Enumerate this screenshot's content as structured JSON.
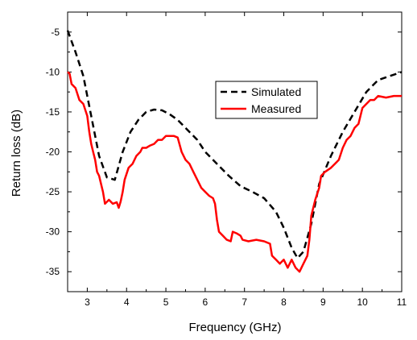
{
  "chart_data": {
    "type": "line",
    "xlabel": "Frequency (GHz)",
    "ylabel": "Return loss (dB)",
    "xlim": [
      2.5,
      11
    ],
    "ylim": [
      -37.5,
      -2.5
    ],
    "xticks": [
      3,
      4,
      5,
      6,
      7,
      8,
      9,
      10,
      11
    ],
    "yticks": [
      -35,
      -30,
      -25,
      -20,
      -15,
      -10,
      -5
    ],
    "legend_position": "upper-middle-right",
    "grid": false,
    "series": [
      {
        "name": "Simulated",
        "color": "#000000",
        "style": "dashed",
        "points": [
          [
            2.5,
            -4.8
          ],
          [
            2.7,
            -7.5
          ],
          [
            2.9,
            -10.5
          ],
          [
            3.1,
            -15.5
          ],
          [
            3.3,
            -20.5
          ],
          [
            3.5,
            -23.2
          ],
          [
            3.7,
            -23.5
          ],
          [
            3.9,
            -20.0
          ],
          [
            4.1,
            -17.5
          ],
          [
            4.3,
            -16.0
          ],
          [
            4.5,
            -15.0
          ],
          [
            4.7,
            -14.7
          ],
          [
            4.9,
            -14.8
          ],
          [
            5.1,
            -15.3
          ],
          [
            5.3,
            -16.0
          ],
          [
            5.5,
            -17.0
          ],
          [
            5.8,
            -18.5
          ],
          [
            6.0,
            -20.0
          ],
          [
            6.3,
            -21.5
          ],
          [
            6.6,
            -23.0
          ],
          [
            6.9,
            -24.3
          ],
          [
            7.2,
            -25.0
          ],
          [
            7.5,
            -25.8
          ],
          [
            7.8,
            -27.5
          ],
          [
            8.0,
            -29.5
          ],
          [
            8.2,
            -32.0
          ],
          [
            8.35,
            -33.3
          ],
          [
            8.5,
            -32.5
          ],
          [
            8.7,
            -29.0
          ],
          [
            8.9,
            -24.0
          ],
          [
            9.2,
            -20.5
          ],
          [
            9.5,
            -17.5
          ],
          [
            9.8,
            -15.0
          ],
          [
            10.1,
            -12.5
          ],
          [
            10.4,
            -11.0
          ],
          [
            10.7,
            -10.5
          ],
          [
            11.0,
            -10.0
          ]
        ]
      },
      {
        "name": "Measured",
        "color": "#ff0000",
        "style": "solid",
        "points": [
          [
            2.5,
            -10.0
          ],
          [
            2.55,
            -10.2
          ],
          [
            2.6,
            -11.5
          ],
          [
            2.7,
            -12.0
          ],
          [
            2.8,
            -13.5
          ],
          [
            2.9,
            -14.0
          ],
          [
            3.0,
            -15.5
          ],
          [
            3.05,
            -17.5
          ],
          [
            3.1,
            -19.0
          ],
          [
            3.15,
            -20.0
          ],
          [
            3.2,
            -21.0
          ],
          [
            3.25,
            -22.5
          ],
          [
            3.3,
            -23.0
          ],
          [
            3.35,
            -24.0
          ],
          [
            3.4,
            -25.0
          ],
          [
            3.45,
            -26.5
          ],
          [
            3.55,
            -26.0
          ],
          [
            3.65,
            -26.5
          ],
          [
            3.75,
            -26.3
          ],
          [
            3.8,
            -27.0
          ],
          [
            3.85,
            -26.2
          ],
          [
            3.9,
            -25.0
          ],
          [
            3.95,
            -23.5
          ],
          [
            4.05,
            -22.0
          ],
          [
            4.15,
            -21.5
          ],
          [
            4.25,
            -20.5
          ],
          [
            4.35,
            -20.0
          ],
          [
            4.4,
            -19.5
          ],
          [
            4.5,
            -19.5
          ],
          [
            4.6,
            -19.2
          ],
          [
            4.7,
            -19.0
          ],
          [
            4.8,
            -18.5
          ],
          [
            4.9,
            -18.5
          ],
          [
            5.0,
            -18.0
          ],
          [
            5.2,
            -18.0
          ],
          [
            5.3,
            -18.2
          ],
          [
            5.4,
            -20.0
          ],
          [
            5.5,
            -21.0
          ],
          [
            5.6,
            -21.5
          ],
          [
            5.7,
            -22.5
          ],
          [
            5.8,
            -23.5
          ],
          [
            5.9,
            -24.5
          ],
          [
            6.0,
            -25.0
          ],
          [
            6.1,
            -25.5
          ],
          [
            6.2,
            -25.8
          ],
          [
            6.25,
            -26.5
          ],
          [
            6.3,
            -28.5
          ],
          [
            6.35,
            -30.0
          ],
          [
            6.45,
            -30.5
          ],
          [
            6.55,
            -31.0
          ],
          [
            6.65,
            -31.2
          ],
          [
            6.7,
            -30.0
          ],
          [
            6.8,
            -30.2
          ],
          [
            6.9,
            -30.5
          ],
          [
            6.95,
            -31.0
          ],
          [
            7.1,
            -31.2
          ],
          [
            7.3,
            -31.0
          ],
          [
            7.5,
            -31.2
          ],
          [
            7.65,
            -31.5
          ],
          [
            7.7,
            -33.0
          ],
          [
            7.8,
            -33.5
          ],
          [
            7.9,
            -34.0
          ],
          [
            8.0,
            -33.5
          ],
          [
            8.1,
            -34.5
          ],
          [
            8.2,
            -33.5
          ],
          [
            8.3,
            -34.5
          ],
          [
            8.4,
            -35.0
          ],
          [
            8.5,
            -34.0
          ],
          [
            8.6,
            -33.0
          ],
          [
            8.65,
            -31.0
          ],
          [
            8.7,
            -28.0
          ],
          [
            8.8,
            -26.0
          ],
          [
            8.9,
            -24.5
          ],
          [
            8.95,
            -23.0
          ],
          [
            9.05,
            -22.5
          ],
          [
            9.2,
            -22.0
          ],
          [
            9.3,
            -21.5
          ],
          [
            9.4,
            -21.0
          ],
          [
            9.5,
            -19.5
          ],
          [
            9.6,
            -18.5
          ],
          [
            9.7,
            -18.0
          ],
          [
            9.8,
            -17.0
          ],
          [
            9.9,
            -16.5
          ],
          [
            10.0,
            -14.5
          ],
          [
            10.1,
            -14.0
          ],
          [
            10.2,
            -13.5
          ],
          [
            10.3,
            -13.5
          ],
          [
            10.4,
            -13.0
          ],
          [
            10.6,
            -13.2
          ],
          [
            10.8,
            -13.0
          ],
          [
            11.0,
            -13.0
          ]
        ]
      }
    ]
  }
}
